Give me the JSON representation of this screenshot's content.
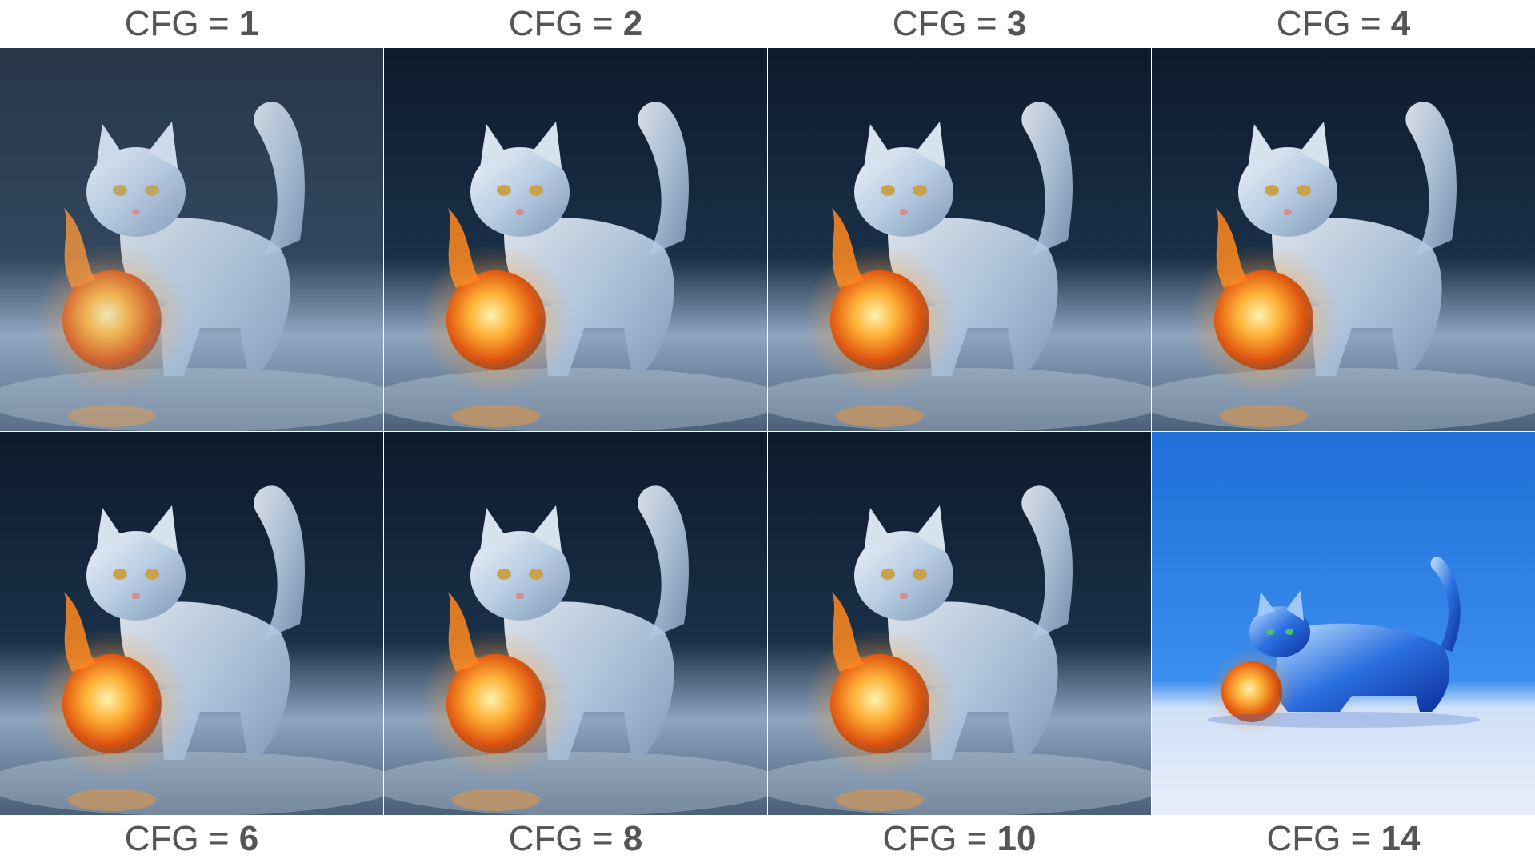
{
  "panels": [
    {
      "prefix": "CFG = ",
      "value": "1"
    },
    {
      "prefix": "CFG = ",
      "value": "2"
    },
    {
      "prefix": "CFG = ",
      "value": "3"
    },
    {
      "prefix": "CFG = ",
      "value": "4"
    },
    {
      "prefix": "CFG = ",
      "value": "6"
    },
    {
      "prefix": "CFG = ",
      "value": "8"
    },
    {
      "prefix": "CFG = ",
      "value": "10"
    },
    {
      "prefix": "CFG = ",
      "value": "14"
    }
  ]
}
